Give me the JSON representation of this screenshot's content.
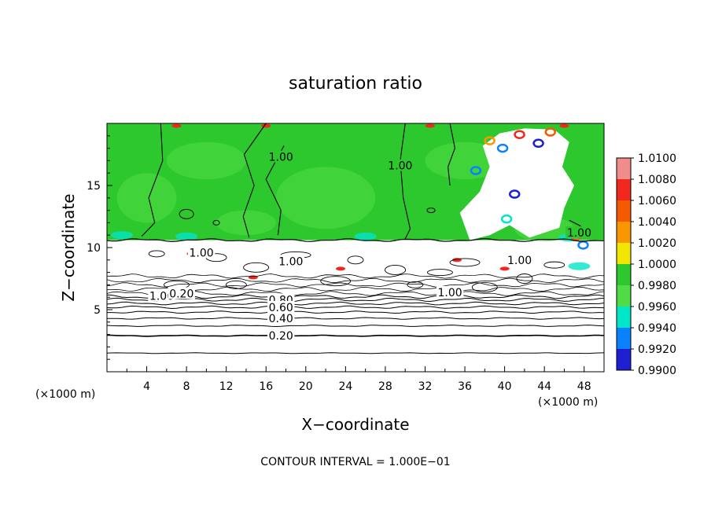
{
  "chart_data": {
    "type": "heatmap",
    "title": "saturation ratio",
    "xlabel": "X−coordinate",
    "ylabel": "Z−coordinate",
    "x_unit_left": "(×1000 m)",
    "x_unit_right": "(×1000 m)",
    "xlim": [
      0,
      50
    ],
    "ylim": [
      0,
      20
    ],
    "x_ticks": [
      4,
      8,
      12,
      16,
      20,
      24,
      28,
      32,
      36,
      40,
      44,
      48
    ],
    "x_tick_labels": [
      "4",
      "8",
      "12",
      "16",
      "20",
      "24",
      "28",
      "32",
      "36",
      "40",
      "44",
      "48"
    ],
    "y_ticks": [
      5,
      10,
      15
    ],
    "y_tick_labels": [
      "5",
      "10",
      "15"
    ],
    "footer": "CONTOUR INTERVAL = 1.000E−01",
    "colorbar": {
      "levels": [
        1.01,
        1.008,
        1.006,
        1.004,
        1.002,
        1.0,
        0.998,
        0.996,
        0.994,
        0.992,
        0.99
      ],
      "labels": [
        "1.0100",
        "1.0080",
        "1.0060",
        "1.0040",
        "1.0020",
        "1.0000",
        "0.9980",
        "0.9960",
        "0.9940",
        "0.9920",
        "0.9900"
      ],
      "colors": [
        "#f08c8c",
        "#f0281e",
        "#f55a00",
        "#fa9600",
        "#f0e600",
        "#2dc82d",
        "#50dc46",
        "#00e6c8",
        "#0a82ff",
        "#1e1ed2",
        "#7814a0"
      ]
    },
    "contour_labels": [
      {
        "text": "1.00",
        "x": 17.5,
        "z": 17.3
      },
      {
        "text": "1.00",
        "x": 29.5,
        "z": 16.6
      },
      {
        "text": "1.00",
        "x": 47.5,
        "z": 11.2
      },
      {
        "text": "1.00",
        "x": 9.5,
        "z": 9.6
      },
      {
        "text": "1.00",
        "x": 18.5,
        "z": 8.9
      },
      {
        "text": "1.00",
        "x": 41.5,
        "z": 9.0
      },
      {
        "text": "1.00",
        "x": 34.5,
        "z": 6.4
      },
      {
        "text": "1.00",
        "x": 5.5,
        "z": 6.1
      },
      {
        "text": "0.20",
        "x": 7.5,
        "z": 6.3
      },
      {
        "text": "0.80",
        "x": 17.5,
        "z": 5.8
      },
      {
        "text": "0.60",
        "x": 17.5,
        "z": 5.2
      },
      {
        "text": "0.40",
        "x": 17.5,
        "z": 4.3
      },
      {
        "text": "0.20",
        "x": 17.5,
        "z": 2.9
      }
    ],
    "contours": [
      {
        "value": 0.1,
        "z": 1.5
      },
      {
        "value": 0.2,
        "z": 2.9
      },
      {
        "value": 0.3,
        "z": 3.7
      },
      {
        "value": 0.4,
        "z": 4.3
      },
      {
        "value": 0.5,
        "z": 4.8
      },
      {
        "value": 0.6,
        "z": 5.2
      },
      {
        "value": 0.7,
        "z": 5.5
      },
      {
        "value": 0.8,
        "z": 5.8
      },
      {
        "value": 0.9,
        "z": 6.05
      }
    ],
    "regions": {
      "saturated_top": {
        "value": 1.0,
        "z_min": 10.6,
        "z_max": 20
      },
      "cloud_layer": {
        "value": "≤1.00",
        "z_min": 5.5,
        "z_max": 10.6
      }
    }
  }
}
